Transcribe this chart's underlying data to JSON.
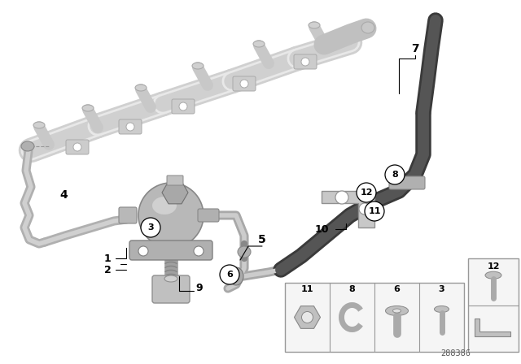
{
  "bg_color": "#ffffff",
  "diagram_number": "288386",
  "rail_color": "#d0d0d0",
  "rail_shadow": "#b8b8b8",
  "tube_color": "#a8a8a8",
  "hose_dark": "#4a4a4a",
  "pump_body": "#b0b0b0",
  "pump_light": "#d0d0d0",
  "pump_dark": "#888888",
  "label_fs": 9,
  "circle_fs": 8
}
